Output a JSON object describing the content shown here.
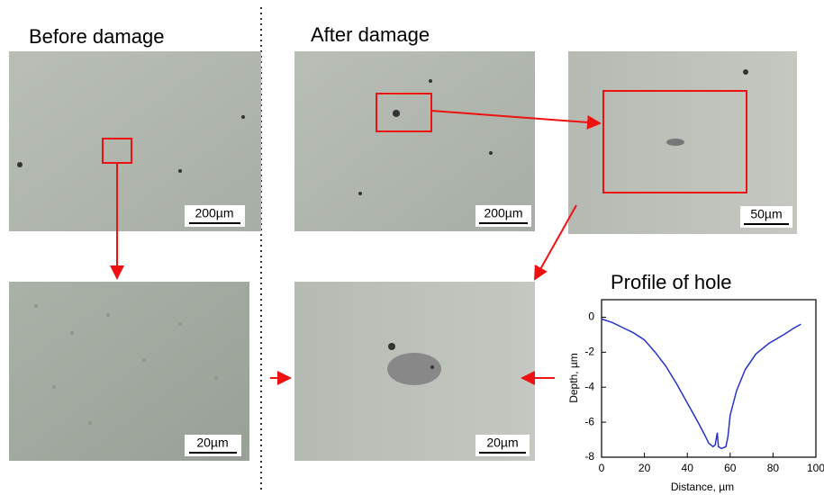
{
  "headings": {
    "before": "Before damage",
    "after": "After damage"
  },
  "scale_bars": [
    "200µm",
    "20µm",
    "200µm",
    "50µm",
    "20µm"
  ],
  "chart_data": {
    "type": "line",
    "title": "Profile of hole",
    "x_label": "Distance, µm",
    "y_label": "Depth, µm",
    "x": [
      0,
      5,
      10,
      15,
      20,
      25,
      30,
      35,
      40,
      45,
      48,
      50,
      52,
      53,
      54,
      54.5,
      56,
      58,
      59,
      60,
      63,
      67,
      72,
      78,
      85,
      90,
      93
    ],
    "values": [
      -0.1,
      -0.3,
      -0.6,
      -0.9,
      -1.3,
      -2,
      -2.8,
      -3.8,
      -4.9,
      -6,
      -6.7,
      -7.2,
      -7.4,
      -7.3,
      -6.6,
      -7.4,
      -7.5,
      -7.4,
      -6.8,
      -5.6,
      -4.2,
      -3,
      -2.1,
      -1.5,
      -1,
      -0.6,
      -0.4
    ],
    "color": "#2433c8",
    "xlim": [
      0,
      100
    ],
    "ylim": [
      -8,
      1
    ],
    "xticks": [
      0,
      20,
      40,
      60,
      80,
      100
    ],
    "yticks": [
      0,
      -2,
      -4,
      -6,
      -8
    ]
  }
}
